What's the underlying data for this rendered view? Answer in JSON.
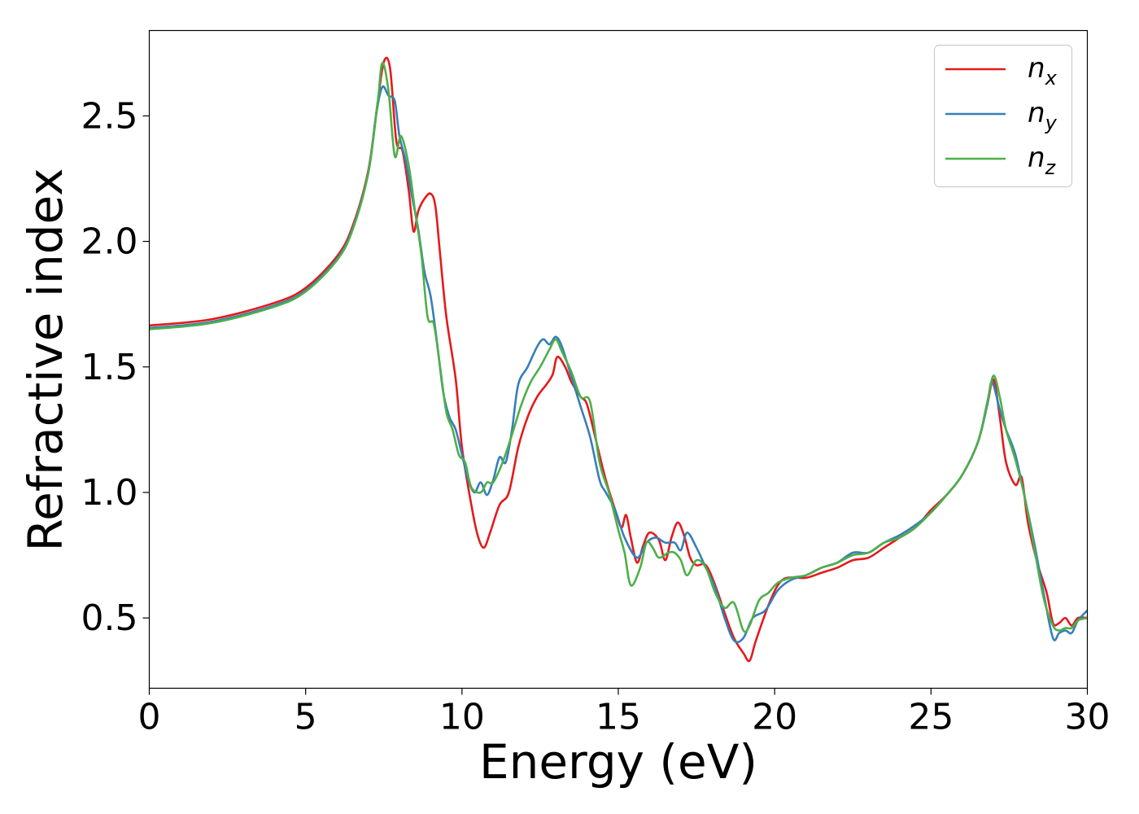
{
  "chart_data": {
    "type": "line",
    "title": "",
    "xlabel": "Energy (eV)",
    "ylabel": "Refractive index",
    "xlim": [
      0,
      30
    ],
    "ylim": [
      0.22,
      2.84
    ],
    "xticks": [
      0,
      5,
      10,
      15,
      20,
      25,
      30
    ],
    "yticks": [
      0.5,
      1.0,
      1.5,
      2.0,
      2.5
    ],
    "xtick_labels": [
      "0",
      "5",
      "10",
      "15",
      "20",
      "25",
      "30"
    ],
    "ytick_labels": [
      "0.5",
      "1.0",
      "1.5",
      "2.0",
      "2.5"
    ],
    "grid": false,
    "legend_position": "top-right",
    "series": [
      {
        "name": "n",
        "subscript": "x",
        "color": "#e41a1c",
        "points": [
          [
            0,
            1.665
          ],
          [
            2,
            1.69
          ],
          [
            4,
            1.755
          ],
          [
            5,
            1.815
          ],
          [
            6,
            1.94
          ],
          [
            6.5,
            2.06
          ],
          [
            7,
            2.28
          ],
          [
            7.3,
            2.55
          ],
          [
            7.5,
            2.715
          ],
          [
            7.7,
            2.69
          ],
          [
            7.9,
            2.4
          ],
          [
            8.1,
            2.36
          ],
          [
            8.3,
            2.2
          ],
          [
            8.45,
            2.04
          ],
          [
            8.6,
            2.12
          ],
          [
            8.8,
            2.17
          ],
          [
            9.0,
            2.19
          ],
          [
            9.15,
            2.14
          ],
          [
            9.3,
            1.95
          ],
          [
            9.5,
            1.7
          ],
          [
            9.8,
            1.45
          ],
          [
            10.0,
            1.18
          ],
          [
            10.3,
            0.95
          ],
          [
            10.5,
            0.83
          ],
          [
            10.7,
            0.78
          ],
          [
            10.9,
            0.84
          ],
          [
            11.2,
            0.95
          ],
          [
            11.5,
            1.0
          ],
          [
            11.8,
            1.18
          ],
          [
            12.1,
            1.3
          ],
          [
            12.4,
            1.38
          ],
          [
            12.7,
            1.43
          ],
          [
            12.9,
            1.47
          ],
          [
            13.05,
            1.54
          ],
          [
            13.3,
            1.5
          ],
          [
            13.5,
            1.44
          ],
          [
            13.8,
            1.38
          ],
          [
            14.0,
            1.35
          ],
          [
            14.3,
            1.2
          ],
          [
            14.6,
            1.05
          ],
          [
            14.9,
            0.93
          ],
          [
            15.1,
            0.86
          ],
          [
            15.25,
            0.91
          ],
          [
            15.4,
            0.82
          ],
          [
            15.6,
            0.72
          ],
          [
            15.8,
            0.79
          ],
          [
            16.0,
            0.84
          ],
          [
            16.3,
            0.81
          ],
          [
            16.5,
            0.73
          ],
          [
            16.7,
            0.82
          ],
          [
            16.9,
            0.88
          ],
          [
            17.1,
            0.83
          ],
          [
            17.3,
            0.74
          ],
          [
            17.5,
            0.71
          ],
          [
            17.8,
            0.71
          ],
          [
            18.1,
            0.63
          ],
          [
            18.4,
            0.52
          ],
          [
            18.7,
            0.42
          ],
          [
            19.0,
            0.36
          ],
          [
            19.2,
            0.33
          ],
          [
            19.4,
            0.41
          ],
          [
            19.8,
            0.55
          ],
          [
            20.1,
            0.63
          ],
          [
            20.4,
            0.66
          ],
          [
            21.0,
            0.66
          ],
          [
            21.5,
            0.68
          ],
          [
            22.0,
            0.7
          ],
          [
            22.5,
            0.73
          ],
          [
            23.0,
            0.74
          ],
          [
            23.5,
            0.78
          ],
          [
            24.0,
            0.82
          ],
          [
            24.5,
            0.86
          ],
          [
            25.0,
            0.93
          ],
          [
            25.5,
            0.99
          ],
          [
            26.0,
            1.07
          ],
          [
            26.5,
            1.2
          ],
          [
            26.8,
            1.35
          ],
          [
            27.0,
            1.45
          ],
          [
            27.2,
            1.3
          ],
          [
            27.4,
            1.12
          ],
          [
            27.7,
            1.03
          ],
          [
            27.9,
            1.06
          ],
          [
            28.1,
            0.88
          ],
          [
            28.4,
            0.72
          ],
          [
            28.7,
            0.6
          ],
          [
            28.9,
            0.48
          ],
          [
            29.1,
            0.48
          ],
          [
            29.3,
            0.5
          ],
          [
            29.5,
            0.47
          ],
          [
            29.7,
            0.5
          ],
          [
            30.0,
            0.5
          ]
        ]
      },
      {
        "name": "n",
        "subscript": "y",
        "color": "#377eb8",
        "points": [
          [
            0,
            1.655
          ],
          [
            2,
            1.68
          ],
          [
            4,
            1.745
          ],
          [
            5,
            1.805
          ],
          [
            6,
            1.93
          ],
          [
            6.5,
            2.05
          ],
          [
            7,
            2.27
          ],
          [
            7.25,
            2.5
          ],
          [
            7.45,
            2.615
          ],
          [
            7.65,
            2.58
          ],
          [
            7.85,
            2.56
          ],
          [
            8.0,
            2.42
          ],
          [
            8.2,
            2.32
          ],
          [
            8.4,
            2.18
          ],
          [
            8.6,
            2.05
          ],
          [
            8.8,
            1.88
          ],
          [
            9.0,
            1.78
          ],
          [
            9.2,
            1.6
          ],
          [
            9.4,
            1.4
          ],
          [
            9.6,
            1.3
          ],
          [
            9.8,
            1.25
          ],
          [
            10.0,
            1.15
          ],
          [
            10.2,
            1.05
          ],
          [
            10.4,
            1.0
          ],
          [
            10.6,
            1.04
          ],
          [
            10.8,
            0.99
          ],
          [
            11.0,
            1.05
          ],
          [
            11.2,
            1.14
          ],
          [
            11.4,
            1.12
          ],
          [
            11.6,
            1.25
          ],
          [
            11.8,
            1.43
          ],
          [
            12.1,
            1.5
          ],
          [
            12.4,
            1.58
          ],
          [
            12.6,
            1.61
          ],
          [
            12.8,
            1.59
          ],
          [
            13.0,
            1.62
          ],
          [
            13.2,
            1.58
          ],
          [
            13.5,
            1.46
          ],
          [
            13.8,
            1.34
          ],
          [
            14.1,
            1.22
          ],
          [
            14.4,
            1.05
          ],
          [
            14.6,
            1.0
          ],
          [
            14.9,
            0.93
          ],
          [
            15.2,
            0.82
          ],
          [
            15.6,
            0.74
          ],
          [
            15.9,
            0.8
          ],
          [
            16.2,
            0.82
          ],
          [
            16.5,
            0.8
          ],
          [
            16.8,
            0.8
          ],
          [
            17.0,
            0.77
          ],
          [
            17.2,
            0.84
          ],
          [
            17.5,
            0.78
          ],
          [
            17.8,
            0.7
          ],
          [
            18.1,
            0.62
          ],
          [
            18.4,
            0.5
          ],
          [
            18.7,
            0.41
          ],
          [
            19.0,
            0.42
          ],
          [
            19.3,
            0.5
          ],
          [
            19.7,
            0.53
          ],
          [
            20.1,
            0.61
          ],
          [
            20.5,
            0.65
          ],
          [
            21.0,
            0.67
          ],
          [
            21.5,
            0.7
          ],
          [
            22.0,
            0.72
          ],
          [
            22.5,
            0.76
          ],
          [
            23.0,
            0.76
          ],
          [
            23.5,
            0.8
          ],
          [
            24.0,
            0.83
          ],
          [
            24.5,
            0.87
          ],
          [
            25.0,
            0.92
          ],
          [
            25.5,
            0.99
          ],
          [
            26.0,
            1.07
          ],
          [
            26.5,
            1.2
          ],
          [
            26.8,
            1.35
          ],
          [
            26.95,
            1.44
          ],
          [
            27.2,
            1.33
          ],
          [
            27.4,
            1.25
          ],
          [
            27.7,
            1.15
          ],
          [
            28.0,
            0.98
          ],
          [
            28.3,
            0.8
          ],
          [
            28.6,
            0.6
          ],
          [
            28.9,
            0.42
          ],
          [
            29.1,
            0.44
          ],
          [
            29.3,
            0.45
          ],
          [
            29.5,
            0.44
          ],
          [
            29.7,
            0.49
          ],
          [
            30.0,
            0.53
          ]
        ]
      },
      {
        "name": "n",
        "subscript": "z",
        "color": "#4daf4a",
        "points": [
          [
            0,
            1.65
          ],
          [
            2,
            1.675
          ],
          [
            4,
            1.74
          ],
          [
            5,
            1.8
          ],
          [
            6,
            1.925
          ],
          [
            6.5,
            2.045
          ],
          [
            7,
            2.27
          ],
          [
            7.3,
            2.55
          ],
          [
            7.45,
            2.71
          ],
          [
            7.65,
            2.6
          ],
          [
            7.85,
            2.34
          ],
          [
            8.05,
            2.42
          ],
          [
            8.3,
            2.3
          ],
          [
            8.5,
            2.12
          ],
          [
            8.7,
            1.95
          ],
          [
            8.9,
            1.7
          ],
          [
            9.1,
            1.67
          ],
          [
            9.3,
            1.5
          ],
          [
            9.5,
            1.32
          ],
          [
            9.7,
            1.25
          ],
          [
            9.9,
            1.15
          ],
          [
            10.1,
            1.12
          ],
          [
            10.3,
            1.02
          ],
          [
            10.6,
            1.0
          ],
          [
            10.8,
            1.04
          ],
          [
            11.0,
            1.04
          ],
          [
            11.3,
            1.12
          ],
          [
            11.6,
            1.23
          ],
          [
            11.9,
            1.35
          ],
          [
            12.2,
            1.44
          ],
          [
            12.5,
            1.5
          ],
          [
            12.8,
            1.57
          ],
          [
            13.0,
            1.61
          ],
          [
            13.2,
            1.56
          ],
          [
            13.5,
            1.48
          ],
          [
            13.8,
            1.38
          ],
          [
            14.1,
            1.36
          ],
          [
            14.4,
            1.12
          ],
          [
            14.7,
            1.0
          ],
          [
            15.0,
            0.85
          ],
          [
            15.2,
            0.76
          ],
          [
            15.4,
            0.63
          ],
          [
            15.7,
            0.7
          ],
          [
            15.9,
            0.8
          ],
          [
            16.1,
            0.78
          ],
          [
            16.3,
            0.74
          ],
          [
            16.6,
            0.76
          ],
          [
            16.8,
            0.76
          ],
          [
            17.0,
            0.73
          ],
          [
            17.2,
            0.67
          ],
          [
            17.5,
            0.73
          ],
          [
            17.8,
            0.7
          ],
          [
            18.1,
            0.6
          ],
          [
            18.4,
            0.54
          ],
          [
            18.7,
            0.56
          ],
          [
            19.0,
            0.45
          ],
          [
            19.2,
            0.47
          ],
          [
            19.5,
            0.57
          ],
          [
            19.8,
            0.6
          ],
          [
            20.1,
            0.64
          ],
          [
            20.5,
            0.66
          ],
          [
            21.0,
            0.67
          ],
          [
            21.5,
            0.7
          ],
          [
            22.0,
            0.72
          ],
          [
            22.5,
            0.75
          ],
          [
            23.0,
            0.76
          ],
          [
            23.5,
            0.8
          ],
          [
            24.0,
            0.82
          ],
          [
            24.5,
            0.86
          ],
          [
            25.0,
            0.92
          ],
          [
            25.5,
            0.99
          ],
          [
            26.0,
            1.07
          ],
          [
            26.5,
            1.2
          ],
          [
            26.8,
            1.36
          ],
          [
            27.0,
            1.465
          ],
          [
            27.2,
            1.38
          ],
          [
            27.4,
            1.25
          ],
          [
            27.7,
            1.13
          ],
          [
            28.0,
            0.98
          ],
          [
            28.3,
            0.78
          ],
          [
            28.6,
            0.58
          ],
          [
            28.9,
            0.47
          ],
          [
            29.1,
            0.45
          ],
          [
            29.3,
            0.46
          ],
          [
            29.5,
            0.46
          ],
          [
            29.7,
            0.49
          ],
          [
            30.0,
            0.5
          ]
        ]
      }
    ]
  }
}
